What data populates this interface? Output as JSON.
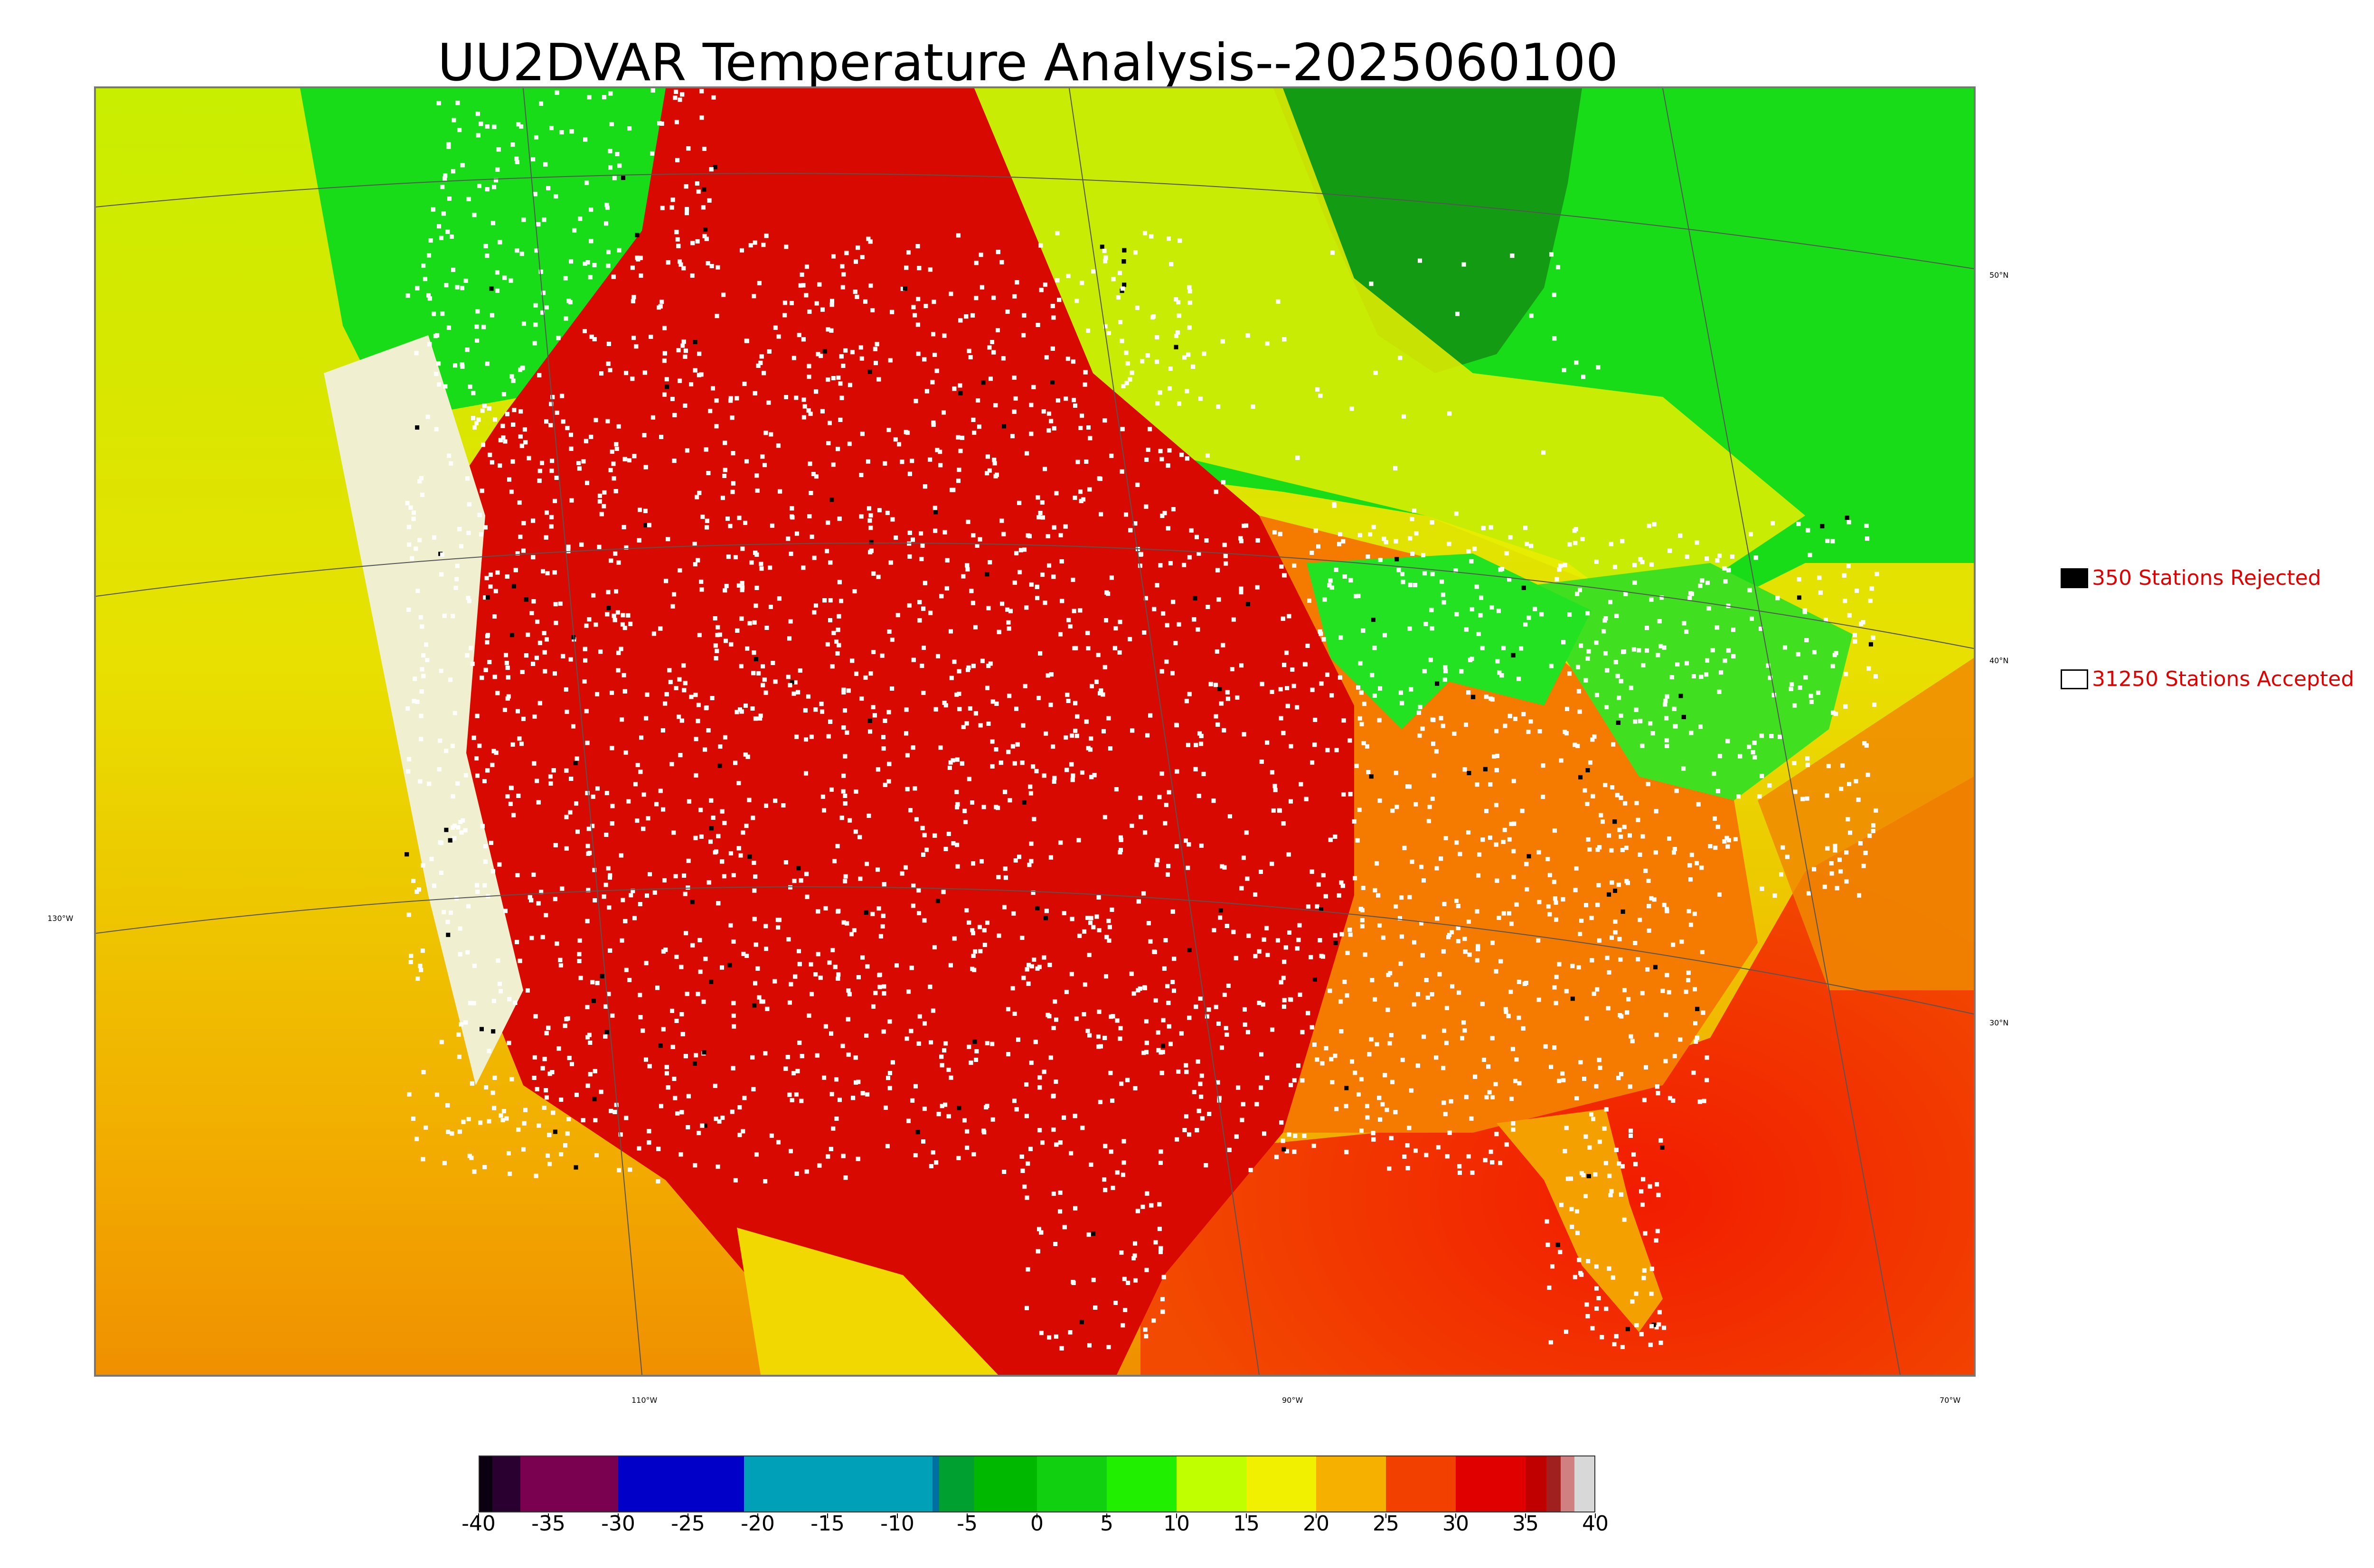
{
  "title": "UU2DVAR Temperature Analysis--2025060100",
  "map": {
    "lat_labels": [
      "50°N",
      "40°N",
      "30°N"
    ],
    "lon_labels": [
      "130°W",
      "110°W",
      "90°W",
      "70°W"
    ],
    "colors": {
      "ocean_warm": "#f23a00",
      "ocean_mid": "#f0b300",
      "ocean_cool": "#d8e800",
      "canada": "#1ae01a",
      "hot_land": "#d90b00",
      "warm_land": "#f26a00",
      "hudson_bay": "#14a014",
      "station_accepted": "#ffffff",
      "station_rejected": "#000000"
    }
  },
  "legend": {
    "rejected": {
      "label": "350 Stations Rejected",
      "swatch": "#000000"
    },
    "accepted": {
      "label": "31250 Stations Accepted",
      "swatch": "#ffffff"
    }
  },
  "colorbar": {
    "min": -40,
    "max": 40,
    "ticks": [
      "-40",
      "-35",
      "-30",
      "-25",
      "-20",
      "-15",
      "-10",
      "-5",
      "0",
      "5",
      "10",
      "15",
      "20",
      "25",
      "30",
      "35",
      "40"
    ],
    "bands": [
      {
        "from": -40,
        "to": -39,
        "color": "#0a0010"
      },
      {
        "from": -39,
        "to": -37,
        "color": "#2a0030"
      },
      {
        "from": -37,
        "to": -30,
        "color": "#7a0050"
      },
      {
        "from": -30,
        "to": -21,
        "color": "#0000c8"
      },
      {
        "from": -21,
        "to": -7.5,
        "color": "#00a0b8"
      },
      {
        "from": -7.5,
        "to": -7,
        "color": "#0070a0"
      },
      {
        "from": -7,
        "to": -4.5,
        "color": "#00a030"
      },
      {
        "from": -4.5,
        "to": 0,
        "color": "#00b800"
      },
      {
        "from": 0,
        "to": 5,
        "color": "#10d010"
      },
      {
        "from": 5,
        "to": 10,
        "color": "#20f000"
      },
      {
        "from": 10,
        "to": 15,
        "color": "#c0ff00"
      },
      {
        "from": 15,
        "to": 20,
        "color": "#f0f000"
      },
      {
        "from": 20,
        "to": 25,
        "color": "#f5b000"
      },
      {
        "from": 25,
        "to": 30,
        "color": "#f24000"
      },
      {
        "from": 30,
        "to": 35,
        "color": "#e00000"
      },
      {
        "from": 35,
        "to": 36.5,
        "color": "#c00000"
      },
      {
        "from": 36.5,
        "to": 37.5,
        "color": "#a02020"
      },
      {
        "from": 37.5,
        "to": 38.5,
        "color": "#d08080"
      },
      {
        "from": 38.5,
        "to": 40,
        "color": "#d8d8d8"
      }
    ]
  }
}
